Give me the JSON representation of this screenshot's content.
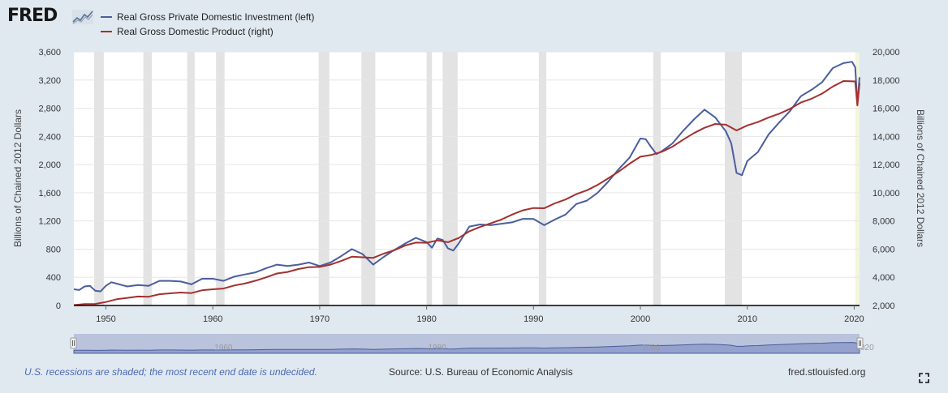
{
  "header": {
    "logo_text": "FRED",
    "logo_icon": "fred-graph-icon"
  },
  "legend": {
    "items": [
      {
        "label": "Real Gross Private Domestic Investment (left)",
        "color": "#4a5e9e"
      },
      {
        "label": "Real Gross Domestic Product (right)",
        "color": "#a3302f"
      }
    ]
  },
  "footer": {
    "recession_note": "U.S. recessions are shaded; the most recent end date is undecided.",
    "source": "Source: U.S. Bureau of Economic Analysis",
    "site": "fred.stlouisfed.org",
    "expand_icon": "expand-icon"
  },
  "navigator": {
    "labels": [
      "1960",
      "1980",
      "2000",
      "2020"
    ]
  },
  "chart_data": {
    "type": "line",
    "title": "",
    "xlabel": "",
    "ylabel_left": "Billions of Chained 2012 Dollars",
    "ylabel_right": "Billions of Chained 2012 Dollars",
    "xlim": [
      1947,
      2020.5
    ],
    "ylim_left": [
      0,
      3600
    ],
    "ylim_right": [
      2000,
      20000
    ],
    "x_ticks": [
      1950,
      1960,
      1970,
      1980,
      1990,
      2000,
      2010,
      2020
    ],
    "y_ticks_left": [
      "0",
      "400",
      "800",
      "1,200",
      "1,600",
      "2,000",
      "2,400",
      "2,800",
      "3,200",
      "3,600"
    ],
    "y_ticks_right": [
      "2,000",
      "4,000",
      "6,000",
      "8,000",
      "10,000",
      "12,000",
      "14,000",
      "16,000",
      "18,000",
      "20,000"
    ],
    "grid": true,
    "recessions": [
      [
        1948.9,
        1949.8
      ],
      [
        1953.5,
        1954.3
      ],
      [
        1957.6,
        1958.3
      ],
      [
        1960.3,
        1961.1
      ],
      [
        1969.9,
        1970.9
      ],
      [
        1973.9,
        1975.2
      ],
      [
        1980.0,
        1980.5
      ],
      [
        1981.5,
        1982.9
      ],
      [
        1990.5,
        1991.2
      ],
      [
        2001.2,
        2001.9
      ],
      [
        2007.9,
        2009.5
      ],
      [
        2020.1,
        2020.5
      ]
    ],
    "series": [
      {
        "name": "Real Gross Private Domestic Investment (left)",
        "axis": "left",
        "color": "#4a5e9e",
        "x": [
          1947,
          1947.5,
          1948,
          1948.5,
          1949,
          1949.5,
          1950,
          1950.5,
          1951,
          1951.5,
          1952,
          1953,
          1954,
          1955,
          1956,
          1957,
          1958,
          1959,
          1960,
          1961,
          1962,
          1963,
          1964,
          1965,
          1966,
          1967,
          1968,
          1969,
          1970,
          1971,
          1972,
          1973,
          1974,
          1975,
          1976,
          1977,
          1978,
          1979,
          1980,
          1980.5,
          1981,
          1981.5,
          1982,
          1982.5,
          1983,
          1984,
          1985,
          1986,
          1987,
          1988,
          1989,
          1990,
          1991,
          1992,
          1993,
          1994,
          1995,
          1996,
          1997,
          1998,
          1999,
          2000,
          2000.5,
          2001,
          2001.5,
          2002,
          2003,
          2004,
          2005,
          2006,
          2007,
          2008,
          2008.5,
          2009,
          2009.5,
          2010,
          2011,
          2012,
          2013,
          2014,
          2015,
          2016,
          2017,
          2018,
          2019,
          2019.8,
          2020.1,
          2020.3,
          2020.5
        ],
        "y": [
          230,
          220,
          270,
          280,
          210,
          200,
          280,
          330,
          310,
          290,
          270,
          290,
          280,
          350,
          350,
          340,
          300,
          380,
          380,
          350,
          410,
          440,
          470,
          530,
          580,
          560,
          580,
          610,
          560,
          610,
          700,
          800,
          730,
          580,
          690,
          790,
          880,
          960,
          900,
          820,
          950,
          930,
          810,
          780,
          880,
          1120,
          1150,
          1140,
          1160,
          1180,
          1230,
          1230,
          1140,
          1220,
          1290,
          1440,
          1490,
          1600,
          1760,
          1940,
          2100,
          2370,
          2360,
          2250,
          2150,
          2190,
          2300,
          2480,
          2640,
          2780,
          2670,
          2470,
          2300,
          1880,
          1850,
          2050,
          2180,
          2430,
          2600,
          2760,
          2970,
          3060,
          3170,
          3370,
          3440,
          3460,
          3380,
          2850,
          3240
        ]
      },
      {
        "name": "Real Gross Domestic Product (right)",
        "axis": "right",
        "color": "#a3302f",
        "x": [
          1947,
          1948,
          1949,
          1950,
          1951,
          1952,
          1953,
          1954,
          1955,
          1956,
          1957,
          1958,
          1959,
          1960,
          1961,
          1962,
          1963,
          1964,
          1965,
          1966,
          1967,
          1968,
          1969,
          1970,
          1971,
          1972,
          1973,
          1974,
          1975,
          1976,
          1977,
          1978,
          1979,
          1980,
          1981,
          1982,
          1983,
          1984,
          1985,
          1986,
          1987,
          1988,
          1989,
          1990,
          1991,
          1992,
          1993,
          1994,
          1995,
          1996,
          1997,
          1998,
          1999,
          2000,
          2001,
          2002,
          2003,
          2004,
          2005,
          2006,
          2007,
          2008,
          2009,
          2010,
          2011,
          2012,
          2013,
          2014,
          2015,
          2016,
          2017,
          2018,
          2019,
          2020.1,
          2020.3,
          2020.5
        ],
        "y": [
          2030,
          2100,
          2110,
          2250,
          2440,
          2540,
          2640,
          2620,
          2800,
          2860,
          2920,
          2880,
          3080,
          3150,
          3200,
          3420,
          3560,
          3760,
          4000,
          4270,
          4380,
          4590,
          4720,
          4740,
          4900,
          5160,
          5460,
          5420,
          5380,
          5680,
          5930,
          6260,
          6460,
          6450,
          6620,
          6490,
          6790,
          7270,
          7570,
          7830,
          8100,
          8450,
          8750,
          8920,
          8900,
          9250,
          9520,
          9900,
          10180,
          10560,
          11030,
          11520,
          12070,
          12560,
          12680,
          12910,
          13270,
          13770,
          14230,
          14610,
          14880,
          14830,
          14420,
          14780,
          15020,
          15350,
          15610,
          15960,
          16400,
          16670,
          17040,
          17540,
          17930,
          17900,
          16200,
          17800
        ]
      }
    ]
  }
}
